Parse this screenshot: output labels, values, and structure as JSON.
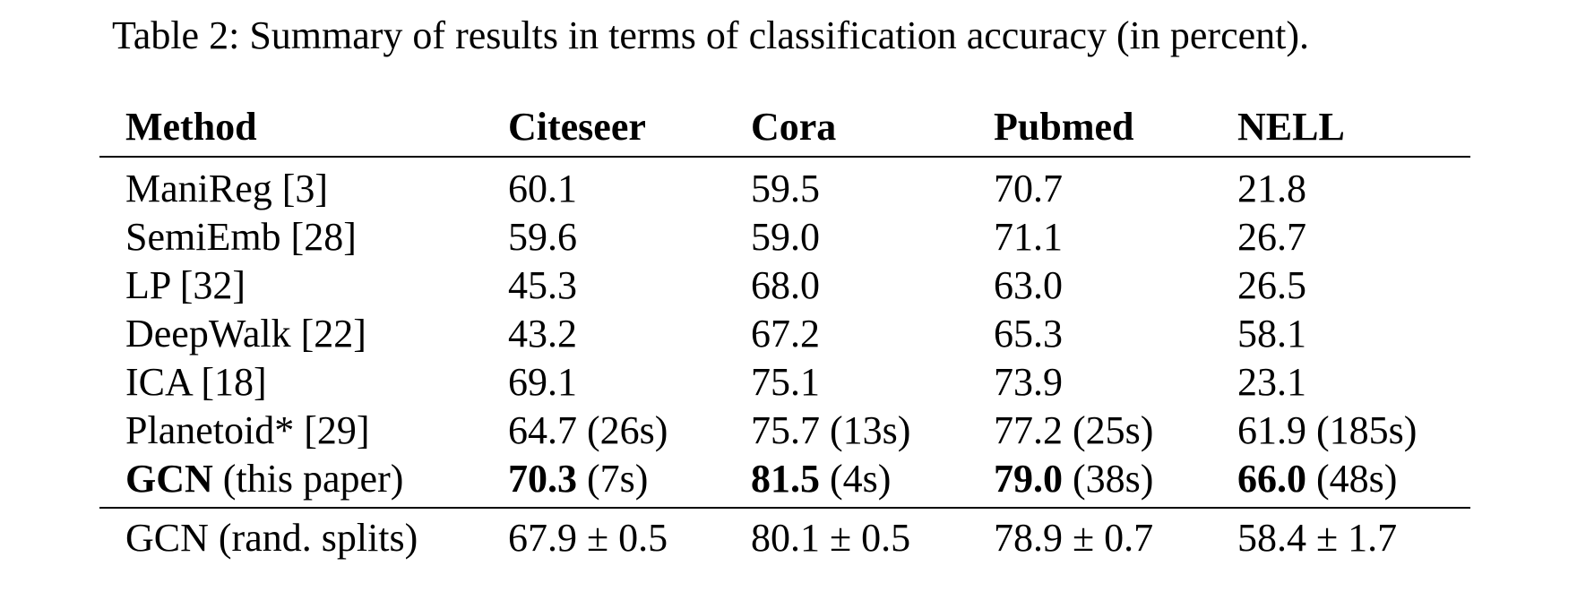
{
  "caption": "Table 2: Summary of results in terms of classification accuracy (in percent).",
  "table": {
    "headers": [
      "Method",
      "Citeseer",
      "Cora",
      "Pubmed",
      "NELL"
    ],
    "rows": [
      {
        "method": "ManiReg [3]",
        "cells": [
          {
            "value": "60.1",
            "extra": ""
          },
          {
            "value": "59.5",
            "extra": ""
          },
          {
            "value": "70.7",
            "extra": ""
          },
          {
            "value": "21.8",
            "extra": ""
          }
        ]
      },
      {
        "method": "SemiEmb [28]",
        "cells": [
          {
            "value": "59.6",
            "extra": ""
          },
          {
            "value": "59.0",
            "extra": ""
          },
          {
            "value": "71.1",
            "extra": ""
          },
          {
            "value": "26.7",
            "extra": ""
          }
        ]
      },
      {
        "method": "LP [32]",
        "cells": [
          {
            "value": "45.3",
            "extra": ""
          },
          {
            "value": "68.0",
            "extra": ""
          },
          {
            "value": "63.0",
            "extra": ""
          },
          {
            "value": "26.5",
            "extra": ""
          }
        ]
      },
      {
        "method": "DeepWalk [22]",
        "cells": [
          {
            "value": "43.2",
            "extra": ""
          },
          {
            "value": "67.2",
            "extra": ""
          },
          {
            "value": "65.3",
            "extra": ""
          },
          {
            "value": "58.1",
            "extra": ""
          }
        ]
      },
      {
        "method": "ICA [18]",
        "cells": [
          {
            "value": "69.1",
            "extra": ""
          },
          {
            "value": "75.1",
            "extra": ""
          },
          {
            "value": "73.9",
            "extra": ""
          },
          {
            "value": "23.1",
            "extra": ""
          }
        ]
      },
      {
        "method": "Planetoid* [29]",
        "cells": [
          {
            "value": "64.7",
            "extra": " (26s)"
          },
          {
            "value": "75.7",
            "extra": " (13s)"
          },
          {
            "value": "77.2",
            "extra": " (25s)"
          },
          {
            "value": "61.9",
            "extra": " (185s)"
          }
        ]
      },
      {
        "method_bold": "GCN",
        "method_rest": " (this paper)",
        "cells": [
          {
            "value": "70.3",
            "extra": " (7s)"
          },
          {
            "value": "81.5",
            "extra": " (4s)"
          },
          {
            "value": "79.0",
            "extra": " (38s)"
          },
          {
            "value": "66.0",
            "extra": " (48s)"
          }
        ]
      }
    ],
    "footer_row": {
      "method": "GCN (rand. splits)",
      "cells": [
        "67.9 ± 0.5",
        "80.1 ± 0.5",
        "78.9 ± 0.7",
        "58.4 ± 1.7"
      ]
    }
  }
}
